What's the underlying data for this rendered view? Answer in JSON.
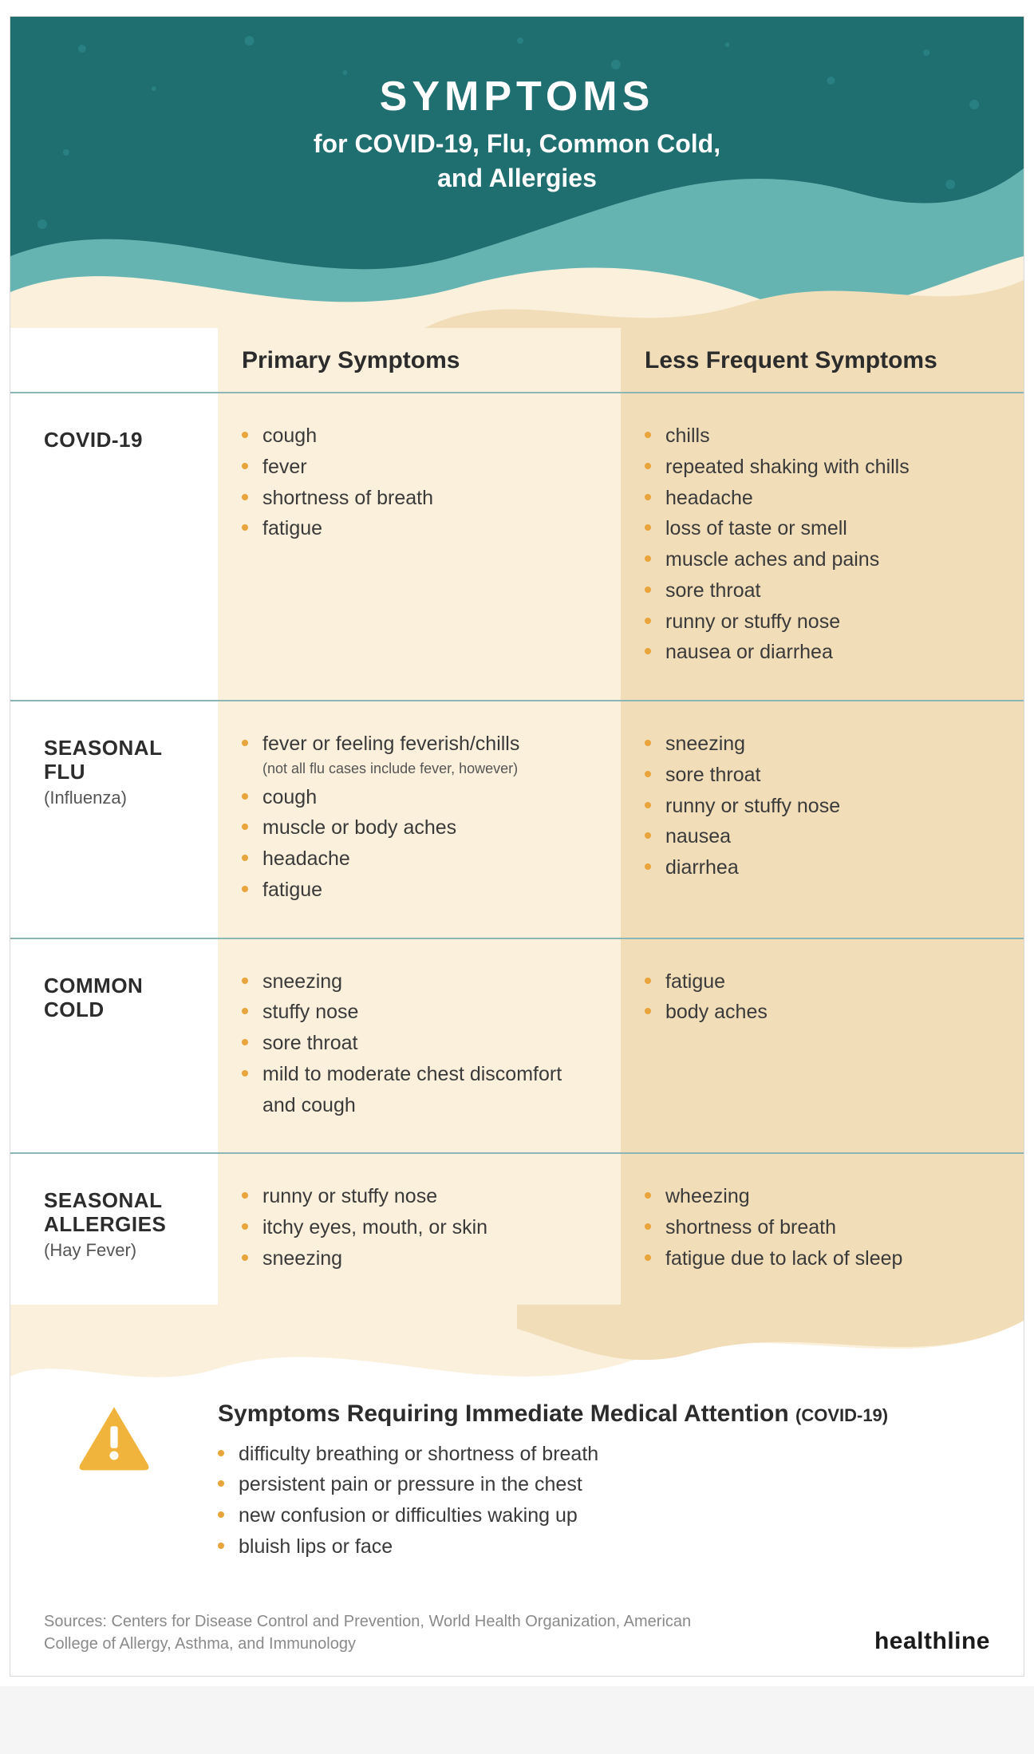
{
  "colors": {
    "teal_dark": "#1f6e70",
    "teal_mid": "#66b4b2",
    "sand_light": "#faf0dc",
    "sand_dark": "#f1deb9",
    "bullet": "#e9a43b",
    "rule": "#2a7a7a",
    "text": "#2c2c2c",
    "white": "#ffffff"
  },
  "hero": {
    "title": "SYMPTOMS",
    "subtitle_l1": "for COVID-19, Flu, Common Cold,",
    "subtitle_l2": "and Allergies"
  },
  "columns": {
    "primary": "Primary Symptoms",
    "less": "Less Frequent Symptoms"
  },
  "rows": [
    {
      "id": "covid19",
      "label": "COVID-19",
      "sublabel": "",
      "primary": [
        "cough",
        "fever",
        "shortness of breath",
        "fatigue"
      ],
      "less": [
        "chills",
        "repeated shaking with chills",
        "headache",
        "loss of taste or smell",
        "muscle aches and pains",
        "sore throat",
        "runny or stuffy nose",
        "nausea or diarrhea"
      ]
    },
    {
      "id": "flu",
      "label": "SEASONAL FLU",
      "sublabel": "(Influenza)",
      "primary_with_notes": [
        {
          "text": "fever or feeling feverish/chills",
          "note": "(not all flu cases include fever, however)"
        },
        {
          "text": "cough"
        },
        {
          "text": "muscle or body aches"
        },
        {
          "text": "headache"
        },
        {
          "text": "fatigue"
        }
      ],
      "less": [
        "sneezing",
        "sore throat",
        "runny or stuffy nose",
        "nausea",
        "diarrhea"
      ]
    },
    {
      "id": "cold",
      "label": "COMMON COLD",
      "sublabel": "",
      "primary": [
        "sneezing",
        "stuffy nose",
        "sore throat",
        "mild to moderate chest discomfort and cough"
      ],
      "less": [
        "fatigue",
        "body aches"
      ]
    },
    {
      "id": "allergies",
      "label": "SEASONAL ALLERGIES",
      "sublabel": "(Hay Fever)",
      "primary": [
        "runny or stuffy nose",
        "itchy eyes, mouth, or skin",
        "sneezing"
      ],
      "less": [
        "wheezing",
        "shortness of breath",
        "fatigue due to lack of sleep"
      ]
    }
  ],
  "emergency": {
    "heading": "Symptoms Requiring Immediate Medical Attention",
    "heading_paren": "(COVID-19)",
    "items": [
      "difficulty breathing or shortness of breath",
      "persistent pain or pressure in the chest",
      "new confusion or difficulties waking up",
      "bluish lips or face"
    ]
  },
  "sources": "Sources: Centers for Disease Control and Prevention, World Health Organization, American College of Allergy, Asthma, and Immunology",
  "brand": "healthline"
}
